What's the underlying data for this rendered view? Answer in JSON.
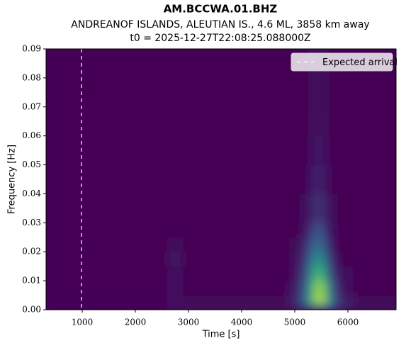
{
  "chart_data": {
    "type": "heatmap",
    "title": "AM.BCCWA.01.BHZ",
    "subtitle": "ANDREANOF ISLANDS, ALEUTIAN IS., 4.6 ML, 3858 km away",
    "subtitle2": "t0 = 2025-12-27T22:08:25.088000Z",
    "xlabel": "Time [s]",
    "ylabel": "Frequency [Hz]",
    "colormap": "viridis",
    "xlim": [
      320,
      6907
    ],
    "ylim": [
      0,
      0.09
    ],
    "xticks": [
      1000,
      2000,
      3000,
      4000,
      5000,
      6000
    ],
    "yticks": [
      {
        "value": 0,
        "label": "0.00"
      },
      {
        "value": 0.01,
        "label": "0.01"
      },
      {
        "value": 0.02,
        "label": "0.02"
      },
      {
        "value": 0.03,
        "label": "0.03"
      },
      {
        "value": 0.04,
        "label": "0.04"
      },
      {
        "value": 0.05,
        "label": "0.05"
      },
      {
        "value": 0.06,
        "label": "0.06"
      },
      {
        "value": 0.07,
        "label": "0.07"
      },
      {
        "value": 0.08,
        "label": "0.08"
      },
      {
        "value": 0.09,
        "label": "0.09"
      }
    ],
    "x_edges": [
      320,
      2400,
      2600,
      2900,
      4900,
      5100,
      5250,
      5350,
      5450,
      5550,
      5650,
      5800,
      6100,
      6907
    ],
    "y_edges": [
      0,
      0.002,
      0.005,
      0.01,
      0.015,
      0.02,
      0.025,
      0.03,
      0.04,
      0.05,
      0.06,
      0.07,
      0.09
    ],
    "z": [
      [
        0.02,
        0.03,
        0.05,
        0.03,
        0.1,
        0.2,
        0.35,
        0.45,
        0.45,
        0.4,
        0.25,
        0.12,
        0.05
      ],
      [
        0,
        0,
        0.05,
        0.02,
        0.12,
        0.3,
        0.6,
        0.85,
        0.9,
        0.7,
        0.3,
        0.1,
        0.02
      ],
      [
        0,
        0,
        0.05,
        0,
        0.08,
        0.25,
        0.55,
        0.8,
        0.85,
        0.6,
        0.25,
        0.05,
        0
      ],
      [
        0,
        0,
        0.04,
        0,
        0.05,
        0.2,
        0.45,
        0.65,
        0.65,
        0.45,
        0.15,
        0.03,
        0
      ],
      [
        0,
        0,
        0.06,
        0,
        0.03,
        0.15,
        0.35,
        0.5,
        0.5,
        0.3,
        0.1,
        0,
        0
      ],
      [
        0,
        0,
        0.03,
        0,
        0.02,
        0.1,
        0.25,
        0.35,
        0.35,
        0.2,
        0.05,
        0,
        0
      ],
      [
        0,
        0,
        0,
        0,
        0,
        0.05,
        0.15,
        0.25,
        0.25,
        0.12,
        0.03,
        0,
        0
      ],
      [
        0,
        0,
        0,
        0,
        0,
        0.03,
        0.08,
        0.15,
        0.15,
        0.08,
        0.02,
        0,
        0
      ],
      [
        0,
        0,
        0,
        0,
        0,
        0,
        0.05,
        0.1,
        0.1,
        0.05,
        0,
        0,
        0
      ],
      [
        0,
        0,
        0,
        0,
        0,
        0,
        0.03,
        0.07,
        0.07,
        0.03,
        0,
        0,
        0
      ],
      [
        0,
        0,
        0,
        0,
        0,
        0,
        0.02,
        0.05,
        0.05,
        0.02,
        0,
        0,
        0
      ],
      [
        0,
        0,
        0,
        0,
        0,
        0,
        0.02,
        0.04,
        0.04,
        0.02,
        0,
        0,
        0
      ]
    ],
    "arrival": 987,
    "arrival_color": "#ffffff",
    "legend_label": "Expected arrival",
    "legend": "upper right"
  }
}
